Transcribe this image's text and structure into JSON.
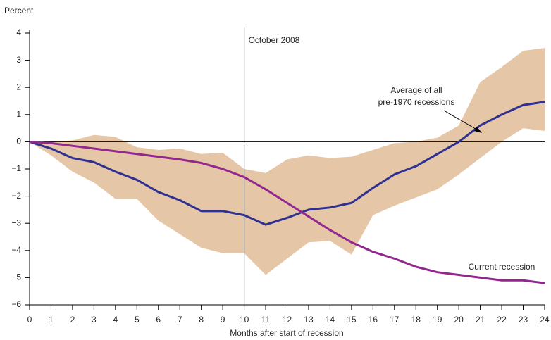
{
  "chart_data": {
    "type": "line",
    "y_axis_label": "Percent",
    "x_axis_label": "Months after start of recession",
    "x": [
      0,
      1,
      2,
      3,
      4,
      5,
      6,
      7,
      8,
      9,
      10,
      11,
      12,
      13,
      14,
      15,
      16,
      17,
      18,
      19,
      20,
      21,
      22,
      23,
      24
    ],
    "xlim": [
      0,
      24
    ],
    "xticks": [
      0,
      1,
      2,
      3,
      4,
      5,
      6,
      7,
      8,
      9,
      10,
      11,
      12,
      13,
      14,
      15,
      16,
      17,
      18,
      19,
      20,
      21,
      22,
      23,
      24
    ],
    "ylim": [
      -6,
      4
    ],
    "yticks": [
      {
        "value": -6,
        "label": "−6"
      },
      {
        "value": -5,
        "label": "−5"
      },
      {
        "value": -4,
        "label": "−4"
      },
      {
        "value": -3,
        "label": "−3"
      },
      {
        "value": -2,
        "label": "−2"
      },
      {
        "value": -1,
        "label": "−1"
      },
      0,
      1,
      2,
      3,
      4
    ],
    "range": {
      "color": "#e5c6a6",
      "upper": [
        0,
        0,
        0.05,
        0.25,
        0.18,
        -0.2,
        -0.3,
        -0.25,
        -0.45,
        -0.4,
        -1.0,
        -1.15,
        -0.65,
        -0.5,
        -0.6,
        -0.55,
        -0.3,
        -0.05,
        0,
        0.15,
        0.6,
        2.2,
        2.75,
        3.35,
        3.45
      ],
      "lower": [
        0,
        -0.5,
        -1.1,
        -1.5,
        -2.1,
        -2.1,
        -2.9,
        -3.4,
        -3.9,
        -4.1,
        -4.1,
        -4.9,
        -4.3,
        -3.7,
        -3.65,
        -4.15,
        -2.7,
        -2.35,
        -2.05,
        -1.75,
        -1.2,
        -0.6,
        0,
        0.5,
        0.4
      ]
    },
    "series": [
      {
        "label": [
          "Average of all",
          "pre-1970 recessions"
        ],
        "color": "#2e3192",
        "values": [
          0,
          -0.25,
          -0.6,
          -0.75,
          -1.1,
          -1.4,
          -1.85,
          -2.15,
          -2.55,
          -2.55,
          -2.7,
          -3.05,
          -2.8,
          -2.5,
          -2.42,
          -2.25,
          -1.7,
          -1.2,
          -0.9,
          -0.45,
          0,
          0.6,
          1.0,
          1.35,
          1.47
        ]
      },
      {
        "label": [
          "Current recession"
        ],
        "color": "#93278f",
        "values": [
          0,
          -0.05,
          -0.15,
          -0.25,
          -0.35,
          -0.45,
          -0.55,
          -0.65,
          -0.78,
          -1.0,
          -1.3,
          -1.75,
          -2.25,
          -2.75,
          -3.25,
          -3.7,
          -4.05,
          -4.3,
          -4.6,
          -4.8,
          -4.9,
          -5.0,
          -5.1,
          -5.1,
          -5.2
        ]
      }
    ],
    "annotations": [
      {
        "x": 10,
        "text": "October 2008"
      }
    ]
  }
}
